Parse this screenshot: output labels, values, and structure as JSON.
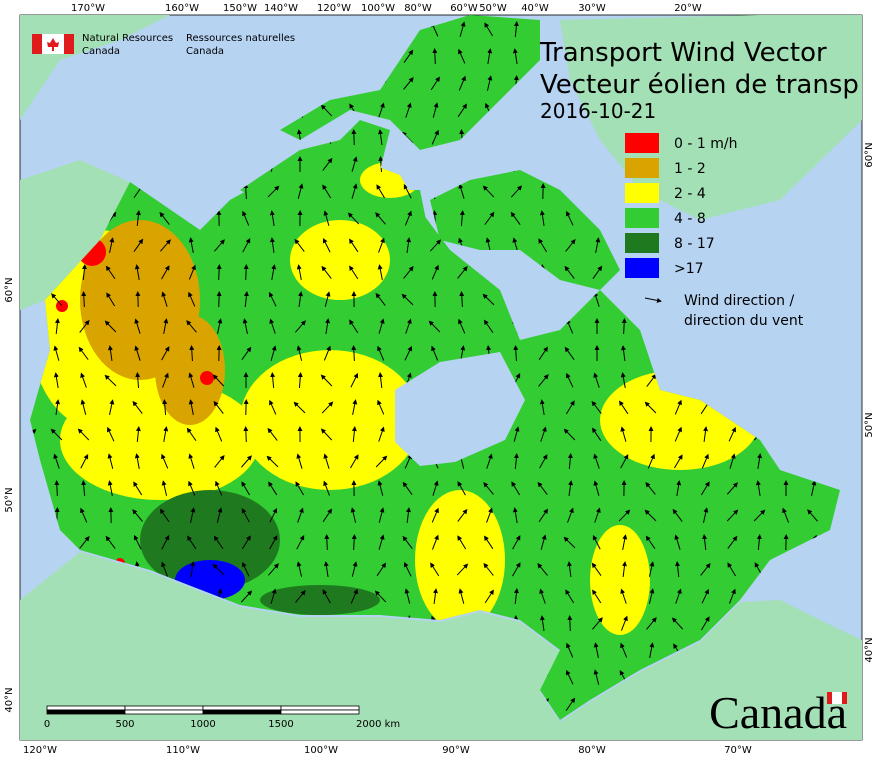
{
  "header": {
    "agency_en": [
      "Natural Resources",
      "Canada"
    ],
    "agency_fr": [
      "Ressources naturelles",
      "Canada"
    ]
  },
  "title": [
    "Transport Wind Vector",
    "Vecteur éolien de transp"
  ],
  "date": "2016-10-21",
  "legend": {
    "items": [
      {
        "label": "0 - 1 m/h",
        "color": "#ff0000"
      },
      {
        "label": "1 - 2",
        "color": "#d9a300"
      },
      {
        "label": "2 - 4",
        "color": "#ffff00"
      },
      {
        "label": "4 - 8",
        "color": "#33cc33"
      },
      {
        "label": "8 - 17",
        "color": "#1f7a1f"
      },
      {
        "label": ">17",
        "color": "#0000ff"
      }
    ],
    "arrow_label": [
      "Wind direction /",
      "direction du vent"
    ]
  },
  "graticule": {
    "top": [
      "170°W",
      "160°W",
      "150°W",
      "140°W",
      "120°W",
      "100°W",
      "80°W",
      "60°W",
      "50°W",
      "40°W",
      "30°W",
      "20°W"
    ],
    "bottom": [
      "120°W",
      "110°W",
      "100°W",
      "90°W",
      "80°W",
      "70°W"
    ],
    "left": [
      "60°N",
      "50°N",
      "40°N"
    ],
    "right": [
      "60°N",
      "50°N",
      "40°N"
    ]
  },
  "scale_bar": {
    "labels": [
      "0",
      "500",
      "1000",
      "1500",
      "2000 km"
    ]
  },
  "wordmark": "Canada"
}
